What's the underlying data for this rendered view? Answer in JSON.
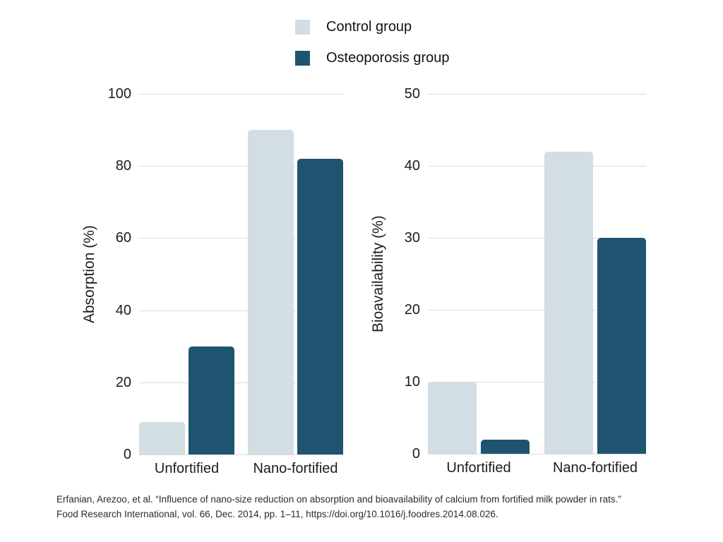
{
  "legend": {
    "items": [
      {
        "label": "Control group",
        "color": "#d2dde4"
      },
      {
        "label": "Osteoporosis group",
        "color": "#1f5470"
      }
    ]
  },
  "chart_data": [
    {
      "type": "bar",
      "title": "",
      "ylabel": "Absorption (%)",
      "xlabel": "",
      "categories": [
        "Unfortified",
        "Nano-fortified"
      ],
      "series": [
        {
          "name": "Control group",
          "color": "#d2dde4",
          "values": [
            9,
            90
          ]
        },
        {
          "name": "Osteoporosis group",
          "color": "#1f5470",
          "values": [
            30,
            82
          ]
        }
      ],
      "ylim": [
        0,
        100
      ],
      "ytick_step": 20,
      "grid": true,
      "legend_position": "top-center"
    },
    {
      "type": "bar",
      "title": "",
      "ylabel": "Bioavailability (%)",
      "xlabel": "",
      "categories": [
        "Unfortified",
        "Nano-fortified"
      ],
      "series": [
        {
          "name": "Control group",
          "color": "#d2dde4",
          "values": [
            10,
            42
          ]
        },
        {
          "name": "Osteoporosis group",
          "color": "#1f5470",
          "values": [
            2,
            30
          ]
        }
      ],
      "ylim": [
        0,
        50
      ],
      "ytick_step": 10,
      "grid": true,
      "legend_position": "top-center"
    }
  ],
  "citation": {
    "line1": "Erfanian, Arezoo, et al. “Influence of nano-size reduction on absorption and bioavailability of calcium from fortified milk powder in rats.”",
    "line2": "Food Research International, vol. 66, Dec. 2014, pp. 1–11, https://doi.org/10.1016/j.foodres.2014.08.026."
  }
}
